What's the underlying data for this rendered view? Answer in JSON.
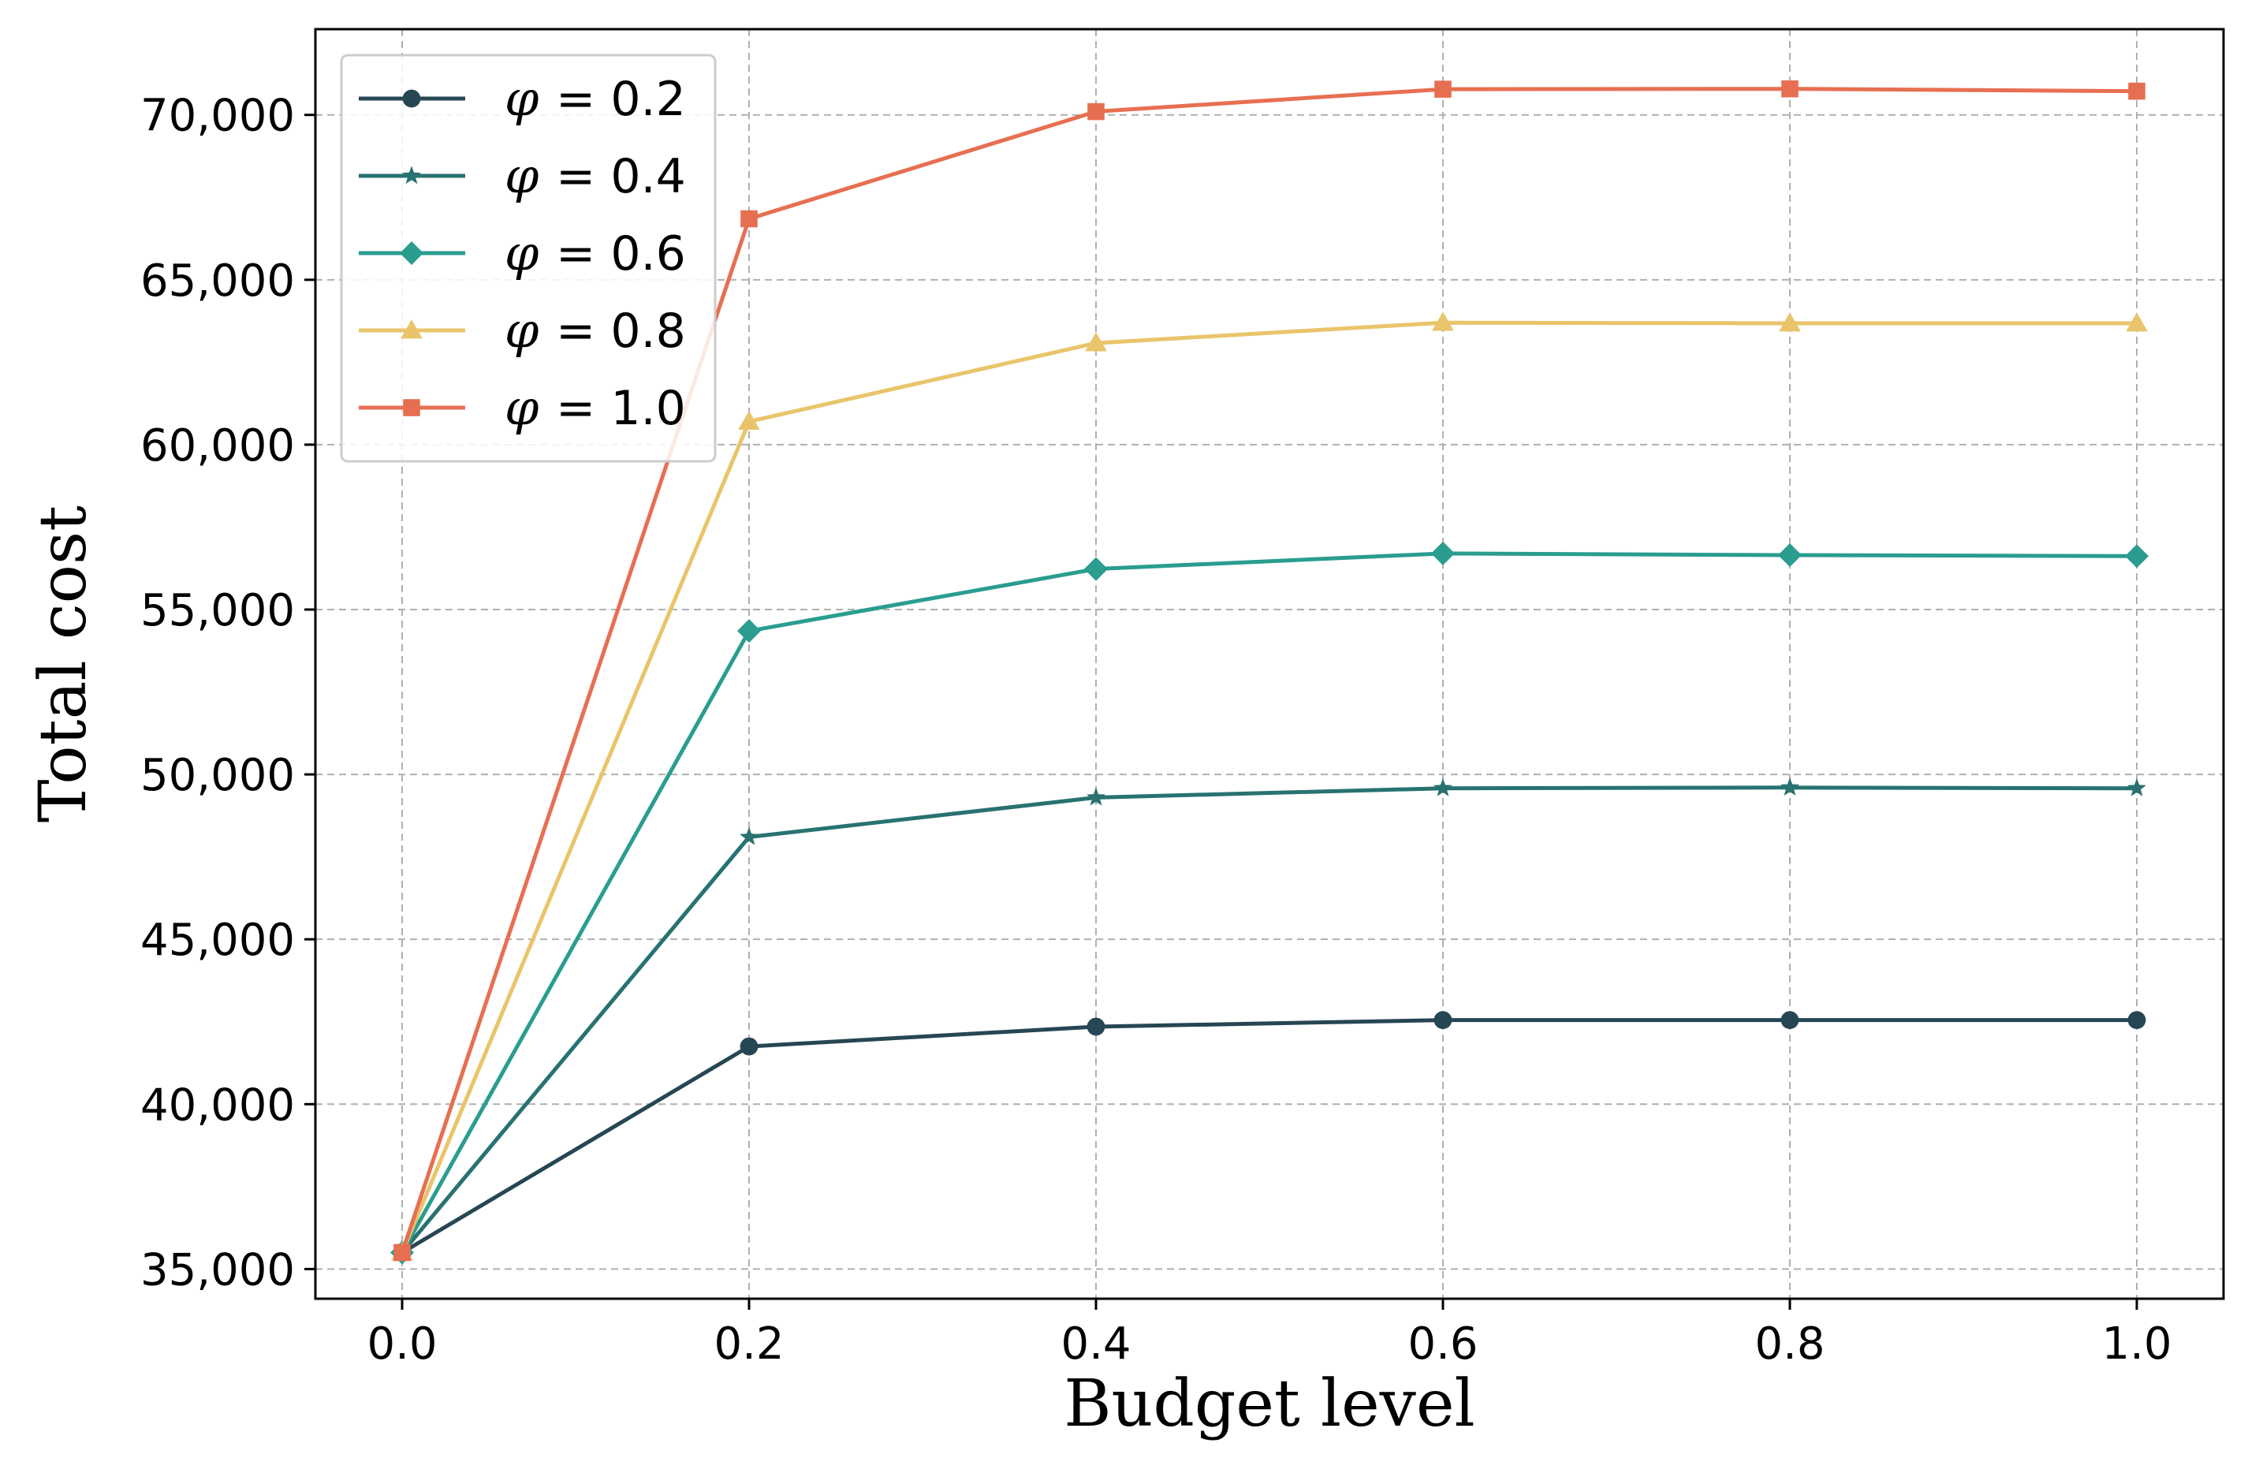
{
  "chart_data": {
    "type": "line",
    "title": "",
    "xlabel": "Budget level",
    "ylabel": "Total cost",
    "x": [
      0.0,
      0.2,
      0.4,
      0.6,
      0.8,
      1.0
    ],
    "x_tick_labels": [
      "0.0",
      "0.2",
      "0.4",
      "0.6",
      "0.8",
      "1.0"
    ],
    "xlim": [
      -0.05,
      1.05
    ],
    "ylim": [
      34100,
      72600
    ],
    "y_ticks": [
      35000,
      40000,
      45000,
      50000,
      55000,
      60000,
      65000,
      70000
    ],
    "y_tick_labels": [
      "35,000",
      "40,000",
      "45,000",
      "50,000",
      "55,000",
      "60,000",
      "65,000",
      "70,000"
    ],
    "grid": true,
    "legend_position": "top-left",
    "series": [
      {
        "name": "φ = 0.2",
        "param_symbol": "φ",
        "param_text": "= 0.2",
        "color": "#264653",
        "marker": "circle",
        "values": [
          35500,
          41750,
          42350,
          42550,
          42550,
          42550
        ]
      },
      {
        "name": "φ = 0.4",
        "param_symbol": "φ",
        "param_text": "= 0.4",
        "color": "#287271",
        "marker": "star",
        "values": [
          35500,
          48100,
          49300,
          49580,
          49600,
          49580
        ]
      },
      {
        "name": "φ = 0.6",
        "param_symbol": "φ",
        "param_text": "= 0.6",
        "color": "#2a9d8f",
        "marker": "diamond",
        "values": [
          35500,
          54350,
          56230,
          56700,
          56650,
          56620
        ]
      },
      {
        "name": "φ = 0.8",
        "param_symbol": "φ",
        "param_text": "= 0.8",
        "color": "#e9c46a",
        "marker": "triangle",
        "values": [
          35500,
          60700,
          63080,
          63700,
          63680,
          63680
        ]
      },
      {
        "name": "φ = 1.0",
        "param_symbol": "φ",
        "param_text": "= 1.0",
        "color": "#e76f51",
        "marker": "square",
        "values": [
          35500,
          66850,
          70100,
          70780,
          70790,
          70720
        ]
      }
    ]
  }
}
